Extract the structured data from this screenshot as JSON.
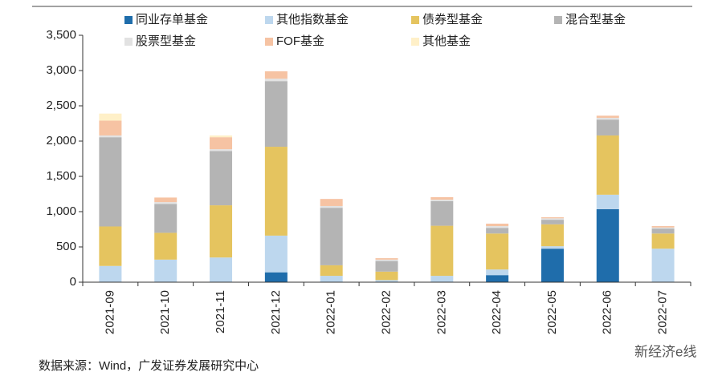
{
  "chart_data": {
    "type": "stacked_bar",
    "categories": [
      "2021-09",
      "2021-10",
      "2021-11",
      "2021-12",
      "2022-01",
      "2022-02",
      "2022-03",
      "2022-04",
      "2022-05",
      "2022-06",
      "2022-07"
    ],
    "series": [
      {
        "name": "同业存单基金",
        "color": "#1f6dab",
        "values": [
          0,
          0,
          0,
          140,
          0,
          0,
          0,
          100,
          475,
          1035,
          0
        ]
      },
      {
        "name": "其他指数基金",
        "color": "#bdd7ee",
        "values": [
          230,
          320,
          350,
          520,
          90,
          30,
          90,
          80,
          35,
          205,
          475
        ]
      },
      {
        "name": "债券型基金",
        "color": "#e5c45f",
        "values": [
          560,
          380,
          740,
          1260,
          150,
          120,
          710,
          510,
          310,
          840,
          215
        ]
      },
      {
        "name": "混合型基金",
        "color": "#b4b4b4",
        "values": [
          1265,
          410,
          770,
          930,
          815,
          150,
          350,
          80,
          65,
          225,
          70
        ]
      },
      {
        "name": "股票型基金",
        "color": "#e2e2e2",
        "values": [
          25,
          25,
          25,
          35,
          25,
          20,
          20,
          25,
          20,
          25,
          15
        ]
      },
      {
        "name": "FOF基金",
        "color": "#f6c3a3",
        "values": [
          210,
          65,
          170,
          105,
          100,
          20,
          35,
          35,
          15,
          30,
          20
        ]
      },
      {
        "name": "其他基金",
        "color": "#fff0c8",
        "values": [
          100,
          0,
          25,
          0,
          0,
          0,
          0,
          0,
          0,
          0,
          0
        ]
      }
    ],
    "ylim": [
      0,
      3500
    ],
    "yticks": [
      0,
      500,
      {
        "value": 1000,
        "label": "1,000"
      },
      {
        "value": 1500,
        "label": "1,500"
      },
      {
        "value": 2000,
        "label": "2,000"
      },
      {
        "value": 2500,
        "label": "2,500"
      },
      {
        "value": 3000,
        "label": "3,000"
      },
      {
        "value": 3500,
        "label": "3,500"
      }
    ],
    "source": "数据来源：Wind，广发证券发展研究中心",
    "watermark": "新经济e线"
  }
}
